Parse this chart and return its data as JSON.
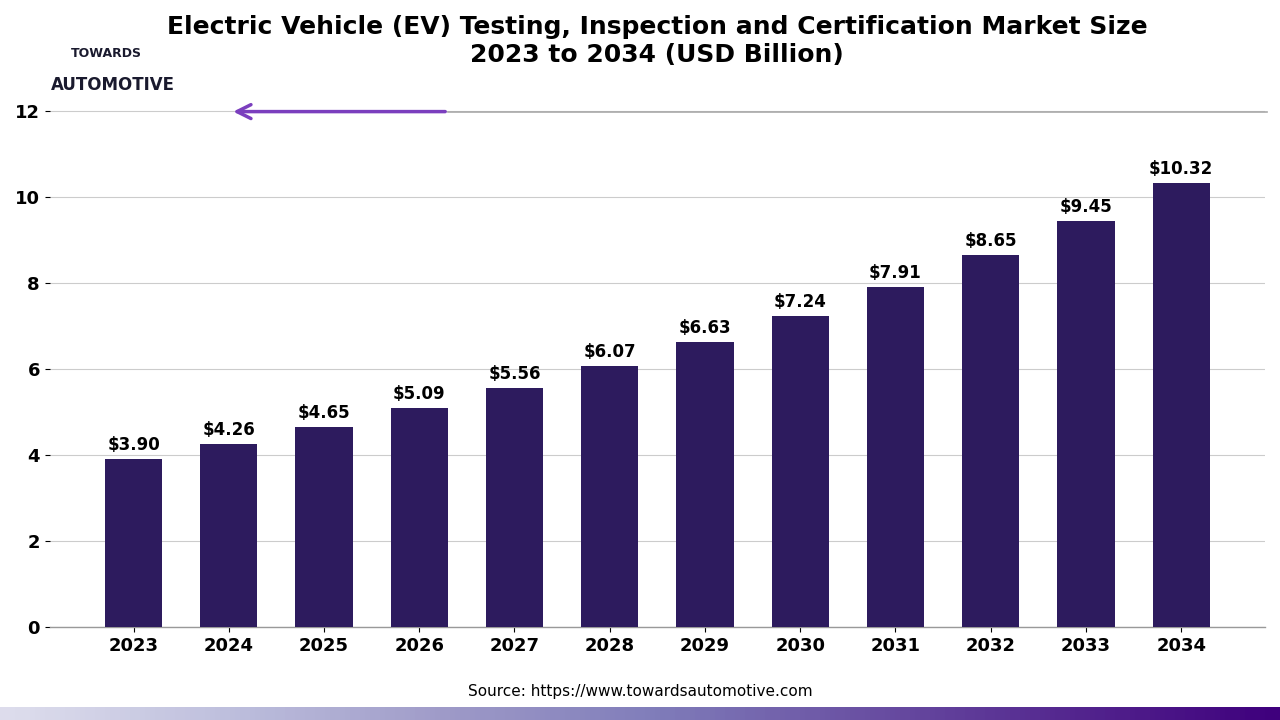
{
  "title_line1": "Electric Vehicle (EV) Testing, Inspection and Certification Market Size",
  "title_line2": "2023 to 2034 (USD Billion)",
  "years": [
    "2023",
    "2024",
    "2025",
    "2026",
    "2027",
    "2028",
    "2029",
    "2030",
    "2031",
    "2032",
    "2033",
    "2034"
  ],
  "values": [
    3.9,
    4.26,
    4.65,
    5.09,
    5.56,
    6.07,
    6.63,
    7.24,
    7.91,
    8.65,
    9.45,
    10.32
  ],
  "labels": [
    "$3.90",
    "$4.26",
    "$4.65",
    "$5.09",
    "$5.56",
    "$6.07",
    "$6.63",
    "$7.24",
    "$7.91",
    "$8.65",
    "$9.45",
    "$10.32"
  ],
  "bar_color": "#2D1B5E",
  "yticks": [
    0,
    2,
    4,
    6,
    8,
    10,
    12
  ],
  "ylim": [
    0,
    12.5
  ],
  "source_text": "Source: https://www.towardsautomotive.com",
  "arrow_color": "#7B3FBE",
  "line_color": "#AAAAAA",
  "grid_color": "#CCCCCC",
  "background_color": "#FFFFFF",
  "title_fontsize": 18,
  "label_fontsize": 12,
  "tick_fontsize": 13,
  "source_fontsize": 11,
  "logo_text_color": "#1a1a2e",
  "bottom_gradient_left": "#7B3FBE",
  "bottom_gradient_right": "#2D1B5E"
}
